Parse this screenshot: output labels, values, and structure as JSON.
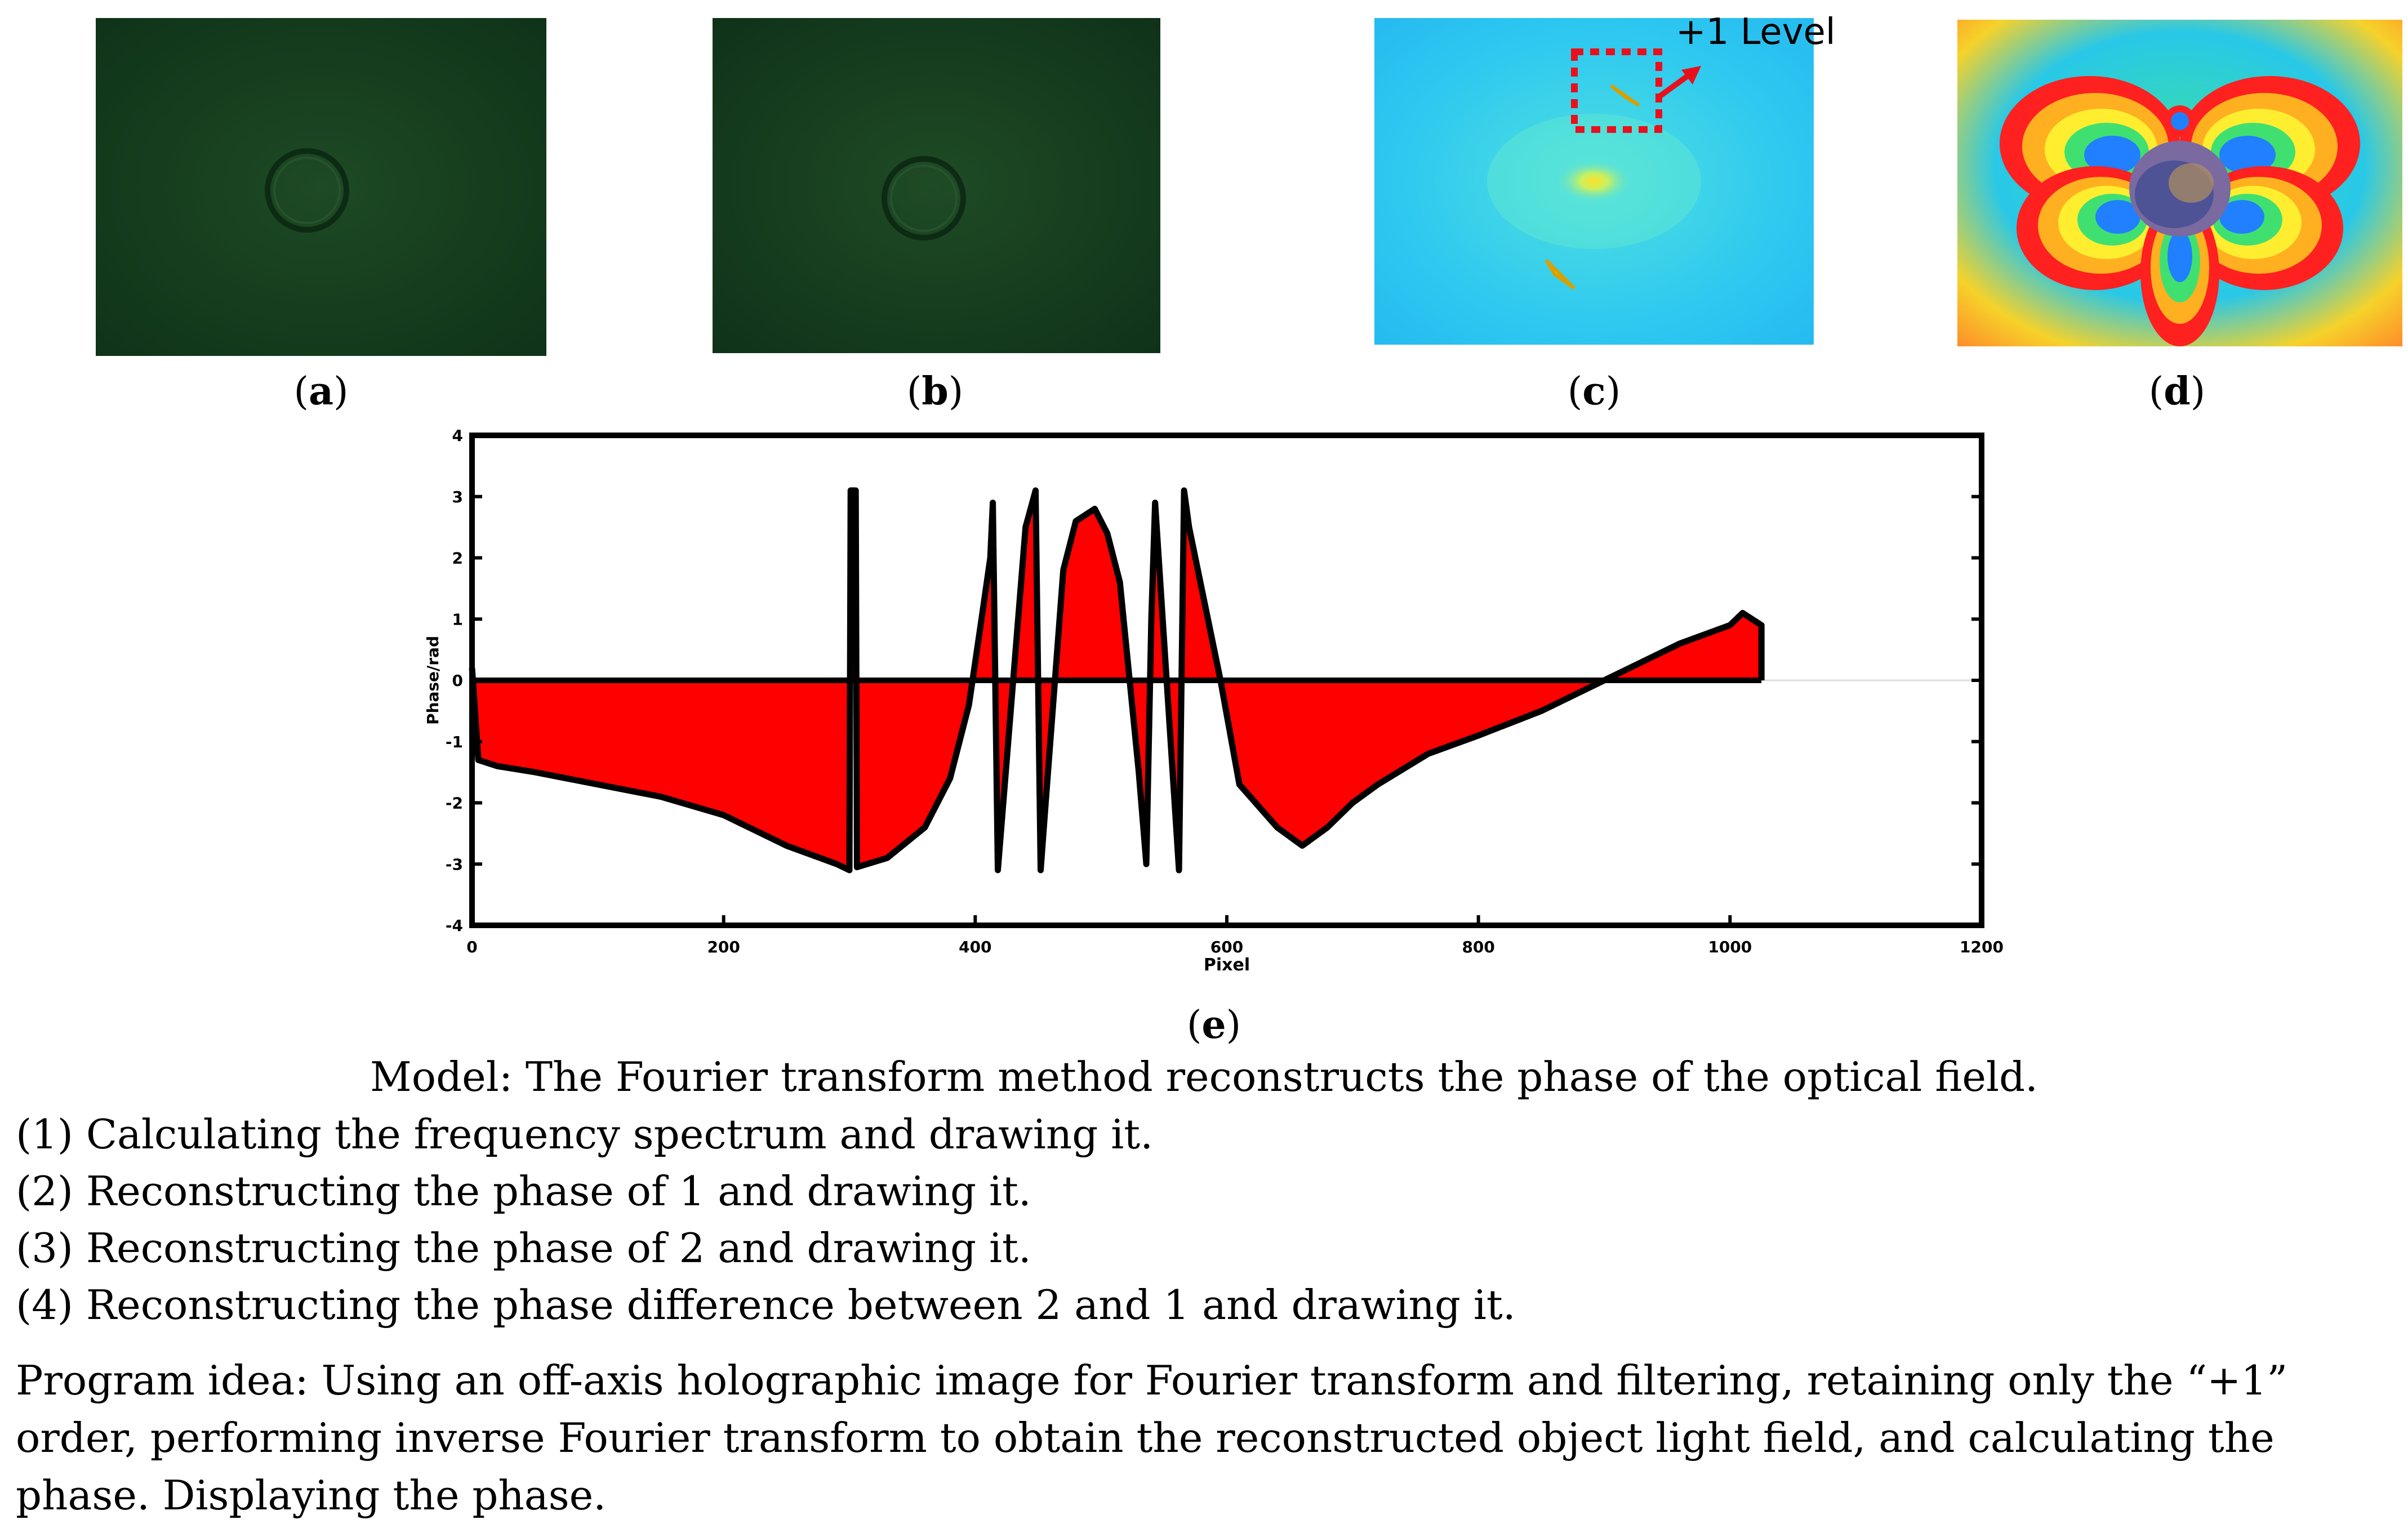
{
  "panels": {
    "a": {
      "label": "a"
    },
    "b": {
      "label": "b"
    },
    "c": {
      "label": "c",
      "annotation": "+1 Level"
    },
    "d": {
      "label": "d"
    },
    "e": {
      "label": "e"
    }
  },
  "chart_data": {
    "type": "area",
    "title": "",
    "xlabel": "Pixel",
    "ylabel": "Phase/rad",
    "xlim": [
      0,
      1200
    ],
    "ylim": [
      -4,
      4
    ],
    "xticks": [
      0,
      200,
      400,
      600,
      800,
      1000,
      1200
    ],
    "yticks": [
      -4,
      -3,
      -2,
      -1,
      0,
      1,
      2,
      3,
      4
    ],
    "fill_color": "#ff0000",
    "line_color": "#000000",
    "x": [
      0,
      5,
      20,
      50,
      100,
      150,
      200,
      250,
      290,
      300,
      301,
      305,
      306,
      330,
      360,
      380,
      395,
      405,
      412,
      414,
      418,
      440,
      448,
      452,
      456,
      470,
      480,
      495,
      505,
      515,
      530,
      536,
      540,
      543,
      562,
      566,
      570,
      580,
      595,
      610,
      640,
      660,
      680,
      700,
      720,
      760,
      800,
      850,
      880,
      900,
      930,
      960,
      1000,
      1010,
      1025
    ],
    "y": [
      0.2,
      -1.3,
      -1.4,
      -1.5,
      -1.7,
      -1.9,
      -2.2,
      -2.7,
      -3.0,
      -3.1,
      3.1,
      3.1,
      -3.05,
      -2.9,
      -2.4,
      -1.6,
      -0.4,
      1.0,
      2.0,
      2.9,
      -3.1,
      2.5,
      3.1,
      -3.1,
      -2.0,
      1.8,
      2.6,
      2.8,
      2.4,
      1.6,
      -1.5,
      -3.0,
      1.0,
      2.9,
      -3.1,
      3.1,
      2.5,
      1.5,
      0.0,
      -1.7,
      -2.4,
      -2.7,
      -2.4,
      -2.0,
      -1.7,
      -1.2,
      -0.9,
      -0.5,
      -0.2,
      0.0,
      0.3,
      0.6,
      0.9,
      1.1,
      0.9
    ]
  },
  "caption": {
    "model": "Model: The Fourier transform method reconstructs the phase of the optical field.",
    "steps": [
      "(1) Calculating the frequency spectrum and drawing it.",
      "(2) Reconstructing the phase of 1 and drawing it.",
      "(3) Reconstructing the phase of 2 and drawing it.",
      "(4) Reconstructing the phase difference between 2 and 1 and drawing it."
    ],
    "program_idea": "Program idea: Using an off-axis holographic image for Fourier transform and filtering, retaining only the “+1” order, performing inverse Fourier transform to obtain the reconstructed object light field, and calculating the phase. Displaying the phase."
  }
}
